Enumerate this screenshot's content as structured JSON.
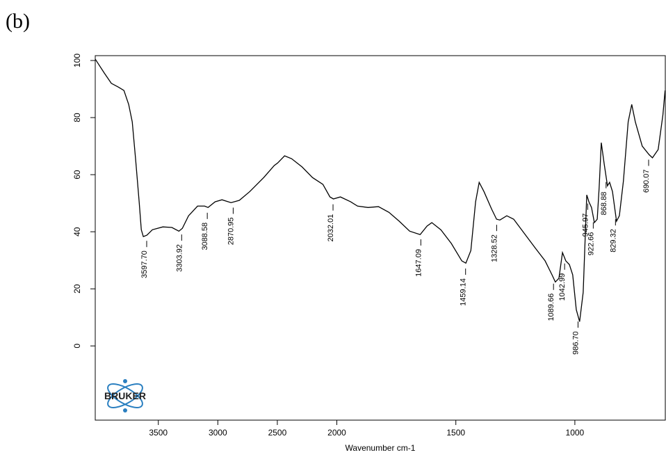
{
  "panel_label": "(b)",
  "logo": "BRUKER",
  "chart_data": {
    "type": "line",
    "x_label": "Wavenumber cm-1",
    "xlim": [
      4030,
      620
    ],
    "x_break": 2000,
    "x_break_zoom": 2,
    "ylim": [
      -26,
      101.7
    ],
    "xticks": [
      3500,
      3000,
      2500,
      2000,
      1500,
      1000
    ],
    "yticks": [
      0,
      20,
      40,
      60,
      80,
      100
    ],
    "series": [
      {
        "color": "#000000",
        "x": [
          4030,
          3954,
          3895,
          3836,
          3789,
          3749,
          3719,
          3690,
          3661,
          3643,
          3626,
          3596,
          3550,
          3462,
          3386,
          3327,
          3298,
          3246,
          3170,
          3111,
          3082,
          3023,
          2965,
          2889,
          2819,
          2731,
          2614,
          2526,
          2497,
          2439,
          2380,
          2292,
          2205,
          2117,
          2058,
          2029,
          1985,
          1942,
          1913,
          1869,
          1825,
          1781,
          1738,
          1694,
          1650,
          1621,
          1601,
          1563,
          1519,
          1475,
          1458,
          1437,
          1417,
          1402,
          1382,
          1350,
          1329,
          1315,
          1286,
          1257,
          1213,
          1169,
          1125,
          1096,
          1082,
          1067,
          1052,
          1038,
          1023,
          1009,
          994,
          980,
          965,
          950,
          941,
          930,
          918,
          906,
          898,
          889,
          877,
          863,
          854,
          842,
          825,
          813,
          796,
          776,
          761,
          746,
          717,
          688,
          674,
          650,
          630,
          621
        ],
        "values": [
          100.5,
          95.6,
          92,
          90.7,
          89.5,
          84.6,
          78.5,
          65,
          50.5,
          40.7,
          38.3,
          38.8,
          40.7,
          41.7,
          41.5,
          40.2,
          41.2,
          45.6,
          49,
          49,
          48.5,
          50.5,
          51.2,
          50.2,
          51,
          54.1,
          59,
          63.2,
          64.1,
          66.6,
          65.6,
          62.7,
          59,
          56.6,
          52.2,
          51.5,
          52.2,
          50.5,
          49,
          48.5,
          48.8,
          46.8,
          43.7,
          40.2,
          39,
          42,
          43.2,
          40.7,
          35.9,
          29.8,
          29,
          33.4,
          50.5,
          57.3,
          54.1,
          48,
          44.4,
          44.1,
          45.6,
          44.4,
          39.5,
          34.6,
          29.8,
          24.9,
          22.4,
          23.7,
          32.7,
          29.8,
          28.5,
          24.9,
          12.7,
          8.5,
          18.8,
          52.9,
          50.5,
          48.5,
          43.2,
          44.4,
          55.4,
          71.2,
          63.9,
          56.1,
          57.3,
          54.1,
          43.7,
          45.6,
          57.8,
          78.5,
          84.6,
          78.5,
          70,
          67,
          65.9,
          68.8,
          81,
          89.5
        ]
      }
    ],
    "peaks": [
      {
        "value": 3597.7,
        "label": "3597.70"
      },
      {
        "value": 3303.92,
        "label": "3303.92"
      },
      {
        "value": 3088.58,
        "label": "3088.58"
      },
      {
        "value": 2870.95,
        "label": "2870.95"
      },
      {
        "value": 2032.01,
        "label": "2032.01"
      },
      {
        "value": 1647.09,
        "label": "1647.09"
      },
      {
        "value": 1459.14,
        "label": "1459.14"
      },
      {
        "value": 1328.52,
        "label": "1328.52"
      },
      {
        "value": 1089.66,
        "label": "1089.66"
      },
      {
        "value": 1042.99,
        "label": "1042.99"
      },
      {
        "value": 986.7,
        "label": "986.70"
      },
      {
        "value": 945.97,
        "label": "945.97"
      },
      {
        "value": 922.66,
        "label": "922.66"
      },
      {
        "value": 868.88,
        "label": "868.88"
      },
      {
        "value": 829.32,
        "label": "829.32"
      },
      {
        "value": 690.07,
        "label": "690.07"
      }
    ]
  }
}
